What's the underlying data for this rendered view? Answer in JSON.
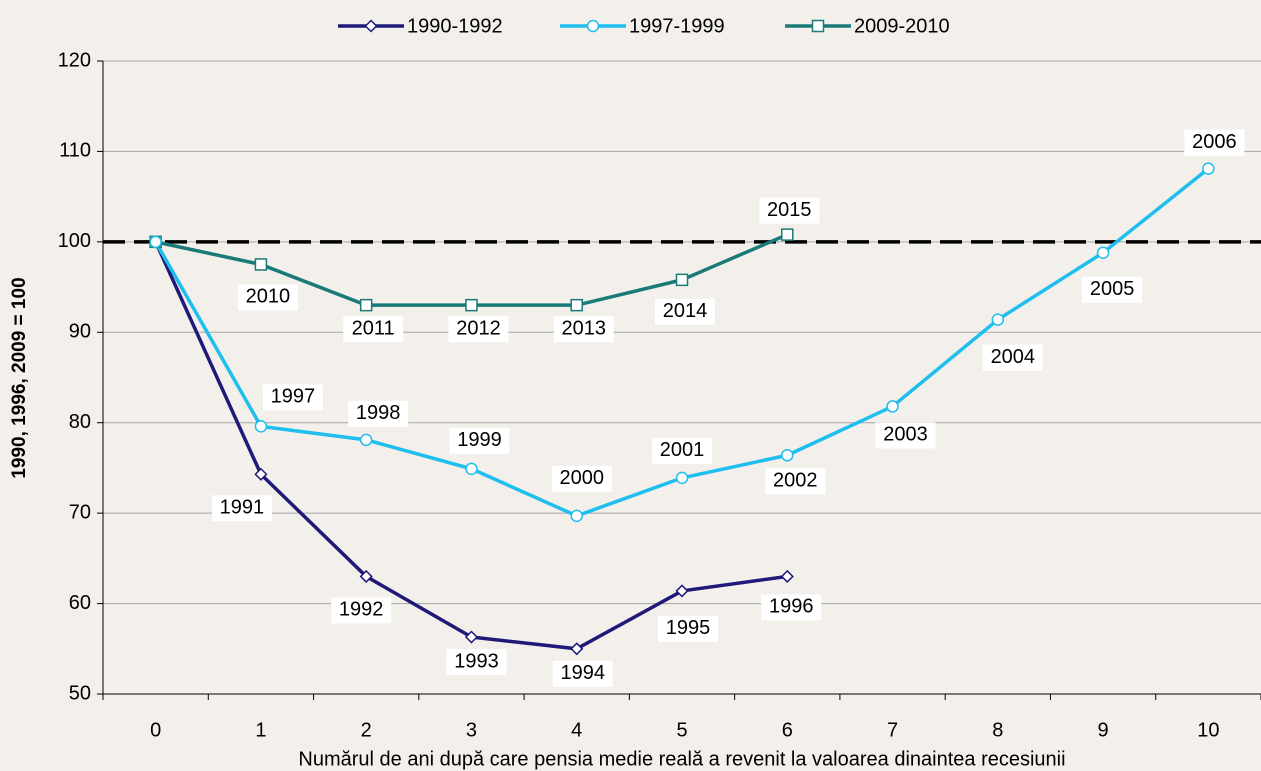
{
  "chart_data": {
    "type": "line",
    "x_label": "Numărul de ani după care pensia medie reală a revenit la valoarea dinaintea recesiunii",
    "y_label": "1990, 1996, 2009 = 100",
    "categories": [
      "0",
      "1",
      "2",
      "3",
      "4",
      "5",
      "6",
      "7",
      "8",
      "9",
      "10"
    ],
    "series": [
      {
        "name": "1990-1992",
        "color": "#1f1a7a",
        "marker": "diamond",
        "values": [
          100,
          74.3,
          63.0,
          56.3,
          55.0,
          61.4,
          63.0,
          null,
          null,
          null,
          null
        ],
        "point_labels": [
          null,
          "1991",
          "1992",
          "1993",
          "1994",
          "1995",
          "1996",
          null,
          null,
          null,
          null
        ]
      },
      {
        "name": "1997-1999",
        "color": "#1ebeef",
        "marker": "circle",
        "values": [
          100,
          79.6,
          78.1,
          74.9,
          69.7,
          73.9,
          76.4,
          81.8,
          91.4,
          98.8,
          108.1
        ],
        "point_labels": [
          null,
          "1997",
          "1998",
          "1999",
          "2000",
          "2001",
          "2002",
          "2003",
          "2004",
          "2005",
          "2006"
        ]
      },
      {
        "name": "2009-2010",
        "color": "#1a7a78",
        "marker": "square",
        "values": [
          100,
          97.5,
          93.0,
          93.0,
          93.0,
          95.8,
          100.8,
          null,
          null,
          null,
          null
        ],
        "point_labels": [
          null,
          "2010",
          "2011",
          "2012",
          "2013",
          "2014",
          "2015",
          null,
          null,
          null,
          null
        ]
      }
    ],
    "reference_line": 100,
    "ylim": [
      50,
      120
    ],
    "yticks": [
      50,
      60,
      70,
      80,
      90,
      100,
      110,
      120
    ],
    "grid": true,
    "legend": "top"
  }
}
